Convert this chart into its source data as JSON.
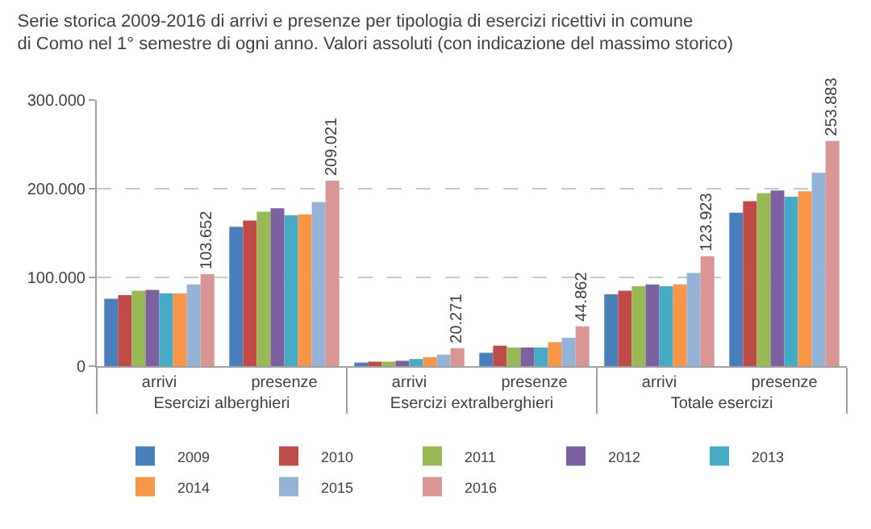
{
  "chart_data": {
    "type": "bar",
    "title": "Serie storica 2009-2016 di arrivi e presenze per tipologia di esercizi ricettivi in comune di Como nel 1° semestre di ogni anno. Valori assoluti (con indicazione del massimo storico)",
    "categories": [
      "arrivi",
      "presenze",
      "arrivi",
      "presenze",
      "arrivi",
      "presenze"
    ],
    "annotations": [
      "Esercizi alberghieri",
      "Esercizi extralberghieri",
      "Totale esercizi"
    ],
    "series": [
      {
        "name": "2009",
        "color": "#4a7ebb",
        "values": [
          76000,
          157000,
          4000,
          15000,
          81000,
          173000
        ]
      },
      {
        "name": "2010",
        "color": "#be4b48",
        "values": [
          80000,
          164000,
          5000,
          23000,
          85000,
          186000
        ]
      },
      {
        "name": "2011",
        "color": "#98b954",
        "values": [
          85000,
          174000,
          5000,
          21000,
          90000,
          195000
        ]
      },
      {
        "name": "2012",
        "color": "#7d60a0",
        "values": [
          86000,
          178000,
          6000,
          21000,
          92000,
          198000
        ]
      },
      {
        "name": "2013",
        "color": "#46aac5",
        "values": [
          82000,
          170000,
          8000,
          21000,
          90000,
          191000
        ]
      },
      {
        "name": "2014",
        "color": "#f79646",
        "values": [
          82000,
          171000,
          10000,
          27000,
          92000,
          197000
        ]
      },
      {
        "name": "2015",
        "color": "#95b3d7",
        "values": [
          92000,
          185000,
          13000,
          32000,
          105000,
          218000
        ]
      },
      {
        "name": "2016",
        "color": "#d99694",
        "values": [
          103652,
          209021,
          20271,
          44862,
          123923,
          253883
        ],
        "value_labels": [
          "103.652",
          "209.021",
          "20.271",
          "44.862",
          "123.923",
          "253.883"
        ]
      }
    ],
    "ylim": [
      0,
      300000
    ],
    "yticks": [
      {
        "value": 0,
        "label": "0"
      },
      {
        "value": 100000,
        "label": "100.000"
      },
      {
        "value": 200000,
        "label": "200.000"
      },
      {
        "value": 300000,
        "label": "300.000"
      }
    ],
    "grid": "y",
    "legend": "bottom"
  }
}
